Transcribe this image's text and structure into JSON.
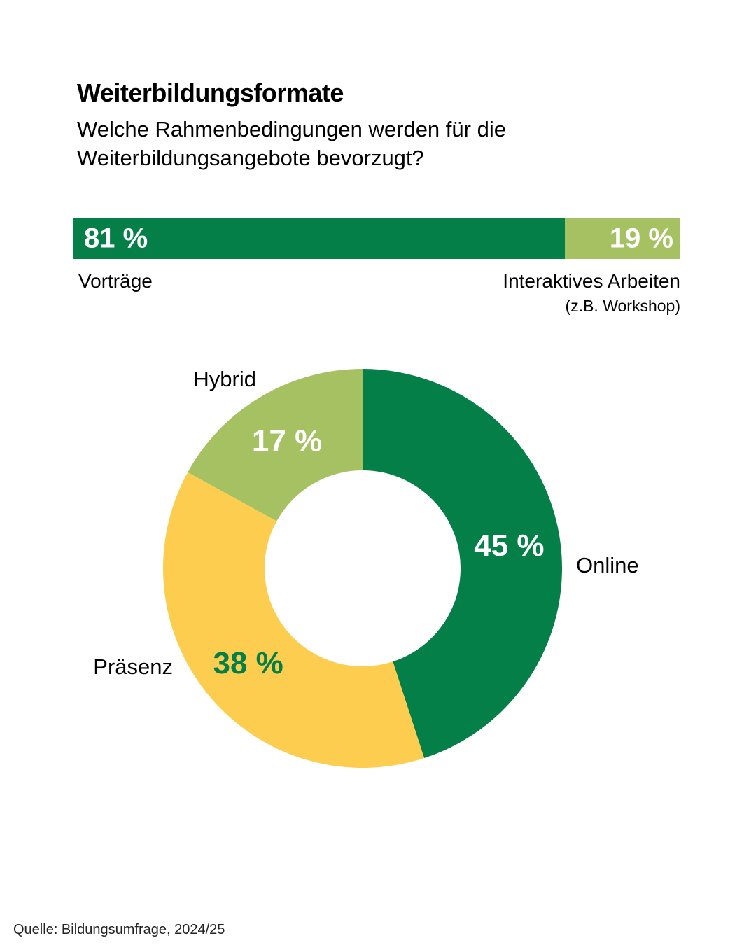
{
  "title": "Weiterbildungsformate",
  "subtitle": "Welche Rahmenbedingungen werden für die Weiterbildungsangebote bevorzugt?",
  "source": "Quelle: Bildungsumfrage, 2024/25",
  "colors": {
    "dark_green": "#037f47",
    "light_green": "#a5c162",
    "yellow": "#fdcd4f",
    "white": "#ffffff",
    "text": "#000000"
  },
  "chart_data": [
    {
      "type": "bar",
      "orientation": "horizontal-stacked",
      "categories": [
        "Vorträge",
        "Interaktives Arbeiten"
      ],
      "category_notes": [
        "",
        "(z.B. Workshop)"
      ],
      "values": [
        81,
        19
      ],
      "value_labels": [
        "81 %",
        "19 %"
      ],
      "unit": "%",
      "colors": [
        "#037f47",
        "#a5c162"
      ]
    },
    {
      "type": "pie",
      "variant": "donut",
      "start": "top",
      "direction": "clockwise",
      "slices": [
        {
          "label": "Online",
          "value": 45,
          "value_label": "45 %",
          "color": "#037f47",
          "label_color": "#ffffff"
        },
        {
          "label": "Präsenz",
          "value": 38,
          "value_label": "38 %",
          "color": "#fdcd4f",
          "label_color": "#037f47"
        },
        {
          "label": "Hybrid",
          "value": 17,
          "value_label": "17 %",
          "color": "#a5c162",
          "label_color": "#ffffff"
        }
      ],
      "unit": "%"
    }
  ]
}
